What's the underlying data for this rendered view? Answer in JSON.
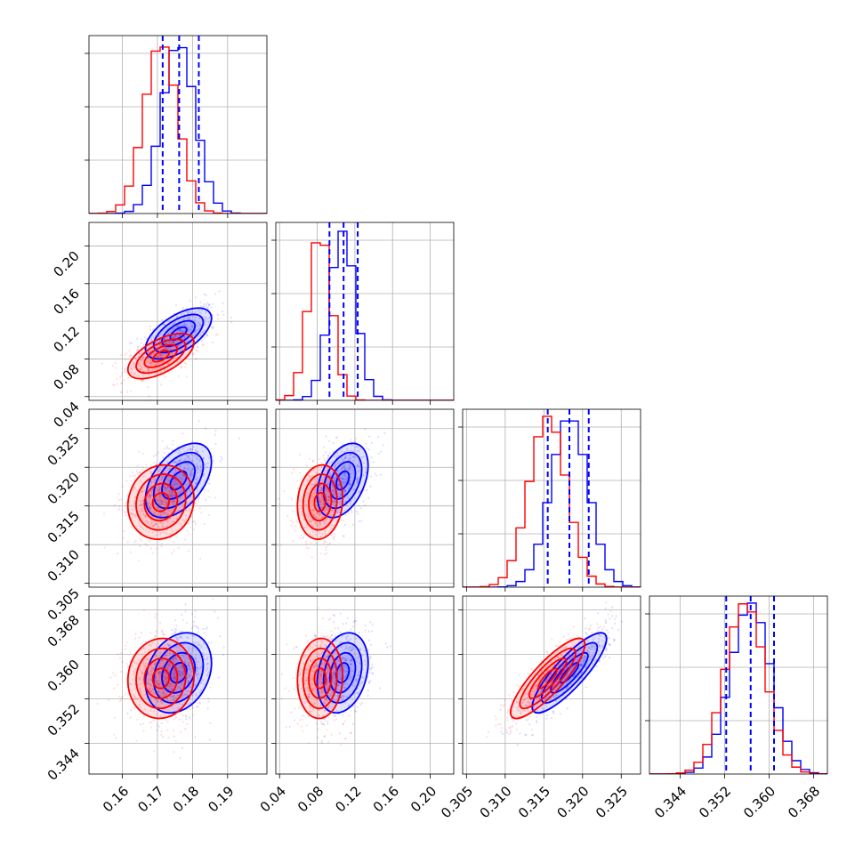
{
  "colors": {
    "series_a": "#0000ff",
    "series_b": "#ff0000",
    "grid": "#b0b0b0"
  },
  "chart_data": {
    "type": "corner",
    "grid": true,
    "series": [
      {
        "color": "#0000ff",
        "mean": [
          0.176,
          0.107,
          0.3183,
          0.3567
        ],
        "sd": [
          0.0047,
          0.0135,
          0.0024,
          0.0036
        ],
        "corr": [
          [
            1,
            0.6,
            0.5,
            0.25
          ],
          [
            0.6,
            1,
            0.4,
            0.25
          ],
          [
            0.5,
            0.4,
            1,
            0.85
          ],
          [
            0.25,
            0.25,
            0.85,
            1
          ]
        ]
      },
      {
        "color": "#ff0000",
        "mean": [
          0.171,
          0.083,
          0.3155,
          0.3557
        ],
        "sd": [
          0.0047,
          0.012,
          0.0024,
          0.0036
        ],
        "corr": [
          [
            1,
            0.6,
            0.1,
            0.05
          ],
          [
            0.6,
            1,
            0.1,
            0.05
          ],
          [
            0.1,
            0.1,
            1,
            0.85
          ],
          [
            0.05,
            0.05,
            0.85,
            1
          ]
        ]
      }
    ],
    "quantile_lines": [
      [
        0.1715,
        0.1762,
        0.1818
      ],
      [
        0.093,
        0.108,
        0.123
      ],
      [
        0.3155,
        0.3183,
        0.3208
      ],
      [
        0.3523,
        0.3567,
        0.3609
      ]
    ],
    "axis_ranges": [
      [
        0.1505,
        0.2012
      ],
      [
        0.036,
        0.225
      ],
      [
        0.3045,
        0.3275
      ],
      [
        0.3385,
        0.3705
      ]
    ],
    "ticks": [
      {
        "values": [
          0.16,
          0.17,
          0.18,
          0.19
        ],
        "labels": [
          "0.16",
          "0.17",
          "0.18",
          "0.19"
        ]
      },
      {
        "values": [
          0.04,
          0.08,
          0.12,
          0.16,
          0.2
        ],
        "labels": [
          "0.04",
          "0.08",
          "0.12",
          "0.16",
          "0.20"
        ]
      },
      {
        "values": [
          0.305,
          0.31,
          0.315,
          0.32,
          0.325
        ],
        "labels": [
          "0.305",
          "0.310",
          "0.315",
          "0.320",
          "0.325"
        ]
      },
      {
        "values": [
          0.344,
          0.352,
          0.36,
          0.368
        ],
        "labels": [
          "0.344",
          "0.352",
          "0.360",
          "0.368"
        ]
      }
    ],
    "diag_yticks": 3,
    "contour_levels": [
      0.5,
      1.0,
      1.5,
      2.0
    ]
  }
}
